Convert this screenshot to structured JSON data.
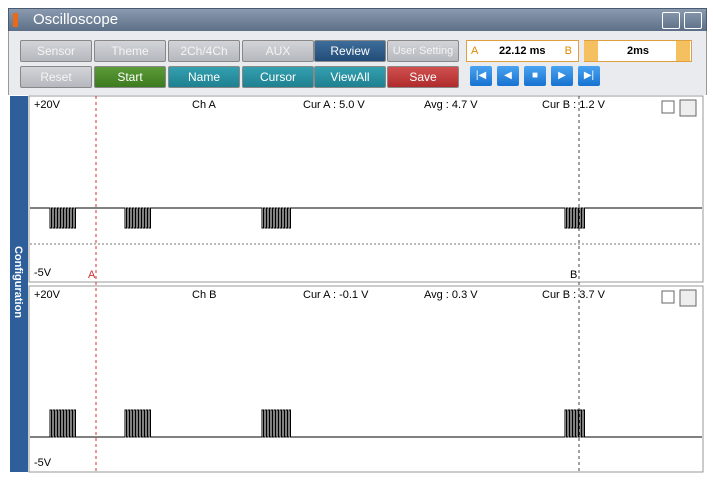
{
  "window": {
    "title": "Oscilloscope"
  },
  "toolbar": {
    "row1": [
      "Sensor",
      "Theme",
      "2Ch/4Ch",
      "AUX",
      "Review",
      "User Setting"
    ],
    "row2": [
      "Reset",
      "Start",
      "Name",
      "Cursor",
      "ViewAll",
      "Save"
    ],
    "cursor_box": {
      "left": "A",
      "value": "22.12 ms",
      "right": "B"
    },
    "timebase": "2ms"
  },
  "side_tab": "Configuration",
  "channels": [
    {
      "top": "+20V",
      "name": "Ch A",
      "cur_a": "Cur A : 5.0 V",
      "avg": "Avg : 4.7 V",
      "cur_b": "Cur B : 1.2 V",
      "bottom": "-5V",
      "marker_a": "A",
      "marker_b": "B"
    },
    {
      "top": "+20V",
      "name": "Ch B",
      "cur_a": "Cur A : -0.1 V",
      "avg": "Avg : 0.3 V",
      "cur_b": "Cur B : 3.7 V",
      "bottom": "-5V"
    }
  ]
}
